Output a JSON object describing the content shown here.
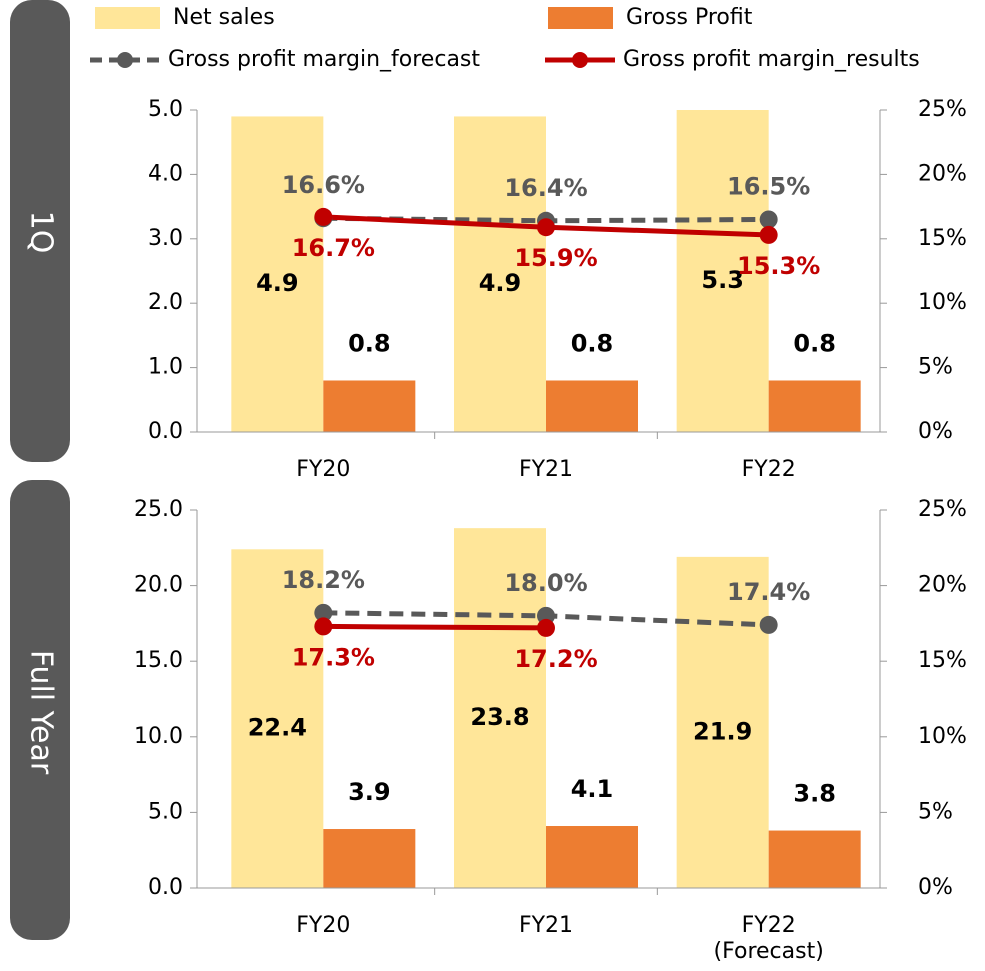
{
  "chart_data": [
    {
      "type": "combo",
      "title": "1Q",
      "categories": [
        "FY20",
        "FY21",
        "FY22"
      ],
      "ylim": [
        0,
        5
      ],
      "yticks": [
        {
          "value": 0,
          "label": "0.0"
        },
        {
          "value": 1,
          "label": "1.0"
        },
        {
          "value": 2,
          "label": "2.0"
        },
        {
          "value": 3,
          "label": "3.0"
        },
        {
          "value": 4,
          "label": "4.0"
        },
        {
          "value": 5,
          "label": "5.0"
        }
      ],
      "y2lim": [
        0,
        25
      ],
      "y2ticks": [
        {
          "value": 0,
          "label": "0%"
        },
        {
          "value": 5,
          "label": "5%"
        },
        {
          "value": 10,
          "label": "10%"
        },
        {
          "value": 15,
          "label": "15%"
        },
        {
          "value": 20,
          "label": "20%"
        },
        {
          "value": 25,
          "label": "25%"
        }
      ],
      "series": [
        {
          "name": "Net sales",
          "type": "bar",
          "color": "#ffe699",
          "values": [
            4.9,
            4.9,
            5.3
          ]
        },
        {
          "name": "Gross Profit",
          "type": "bar",
          "color": "#ed7d31",
          "values": [
            0.8,
            0.8,
            0.8
          ]
        },
        {
          "name": "Gross profit margin_forecast",
          "type": "line",
          "dashed": true,
          "axis": "y2",
          "color": "#595959",
          "values": [
            16.6,
            16.4,
            16.5
          ],
          "value_labels": [
            "16.6%",
            "16.4%",
            "16.5%"
          ]
        },
        {
          "name": "Gross profit margin_results",
          "type": "line",
          "axis": "y2",
          "color": "#c00000",
          "values": [
            16.7,
            15.9,
            15.3
          ],
          "value_labels": [
            "16.7%",
            "15.9%",
            "15.3%"
          ]
        }
      ]
    },
    {
      "type": "combo",
      "title": "Full Year",
      "categories": [
        "FY20",
        "FY21",
        "FY22\n(Forecast)"
      ],
      "ylim": [
        0,
        25
      ],
      "yticks": [
        {
          "value": 0,
          "label": "0.0"
        },
        {
          "value": 5,
          "label": "5.0"
        },
        {
          "value": 10,
          "label": "10.0"
        },
        {
          "value": 15,
          "label": "15.0"
        },
        {
          "value": 20,
          "label": "20.0"
        },
        {
          "value": 25,
          "label": "25.0"
        }
      ],
      "y2lim": [
        0,
        25
      ],
      "y2ticks": [
        {
          "value": 0,
          "label": "0%"
        },
        {
          "value": 5,
          "label": "5%"
        },
        {
          "value": 10,
          "label": "10%"
        },
        {
          "value": 15,
          "label": "15%"
        },
        {
          "value": 20,
          "label": "20%"
        },
        {
          "value": 25,
          "label": "25%"
        }
      ],
      "series": [
        {
          "type": "bar",
          "color": "#ffe699",
          "values": [
            22.4,
            23.8,
            21.9
          ]
        },
        {
          "type": "bar",
          "color": "#ed7d31",
          "values": [
            3.9,
            4.1,
            3.8
          ]
        },
        {
          "type": "line",
          "dashed": true,
          "axis": "y2",
          "color": "#595959",
          "values": [
            18.2,
            18.0,
            17.4
          ],
          "value_labels": [
            "18.2%",
            "18.0%",
            "17.4%"
          ]
        },
        {
          "type": "line",
          "axis": "y2",
          "color": "#c00000",
          "values": [
            17.3,
            17.2,
            null
          ],
          "value_labels": [
            "17.3%",
            "17.2%",
            null
          ]
        }
      ]
    }
  ]
}
